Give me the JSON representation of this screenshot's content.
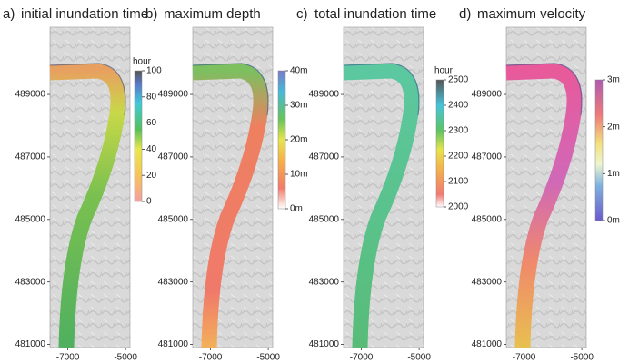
{
  "panels": [
    {
      "label": "a)",
      "title": "initial inundation time",
      "colorbar": {
        "unit": "hour",
        "ticks": [
          0,
          20,
          40,
          60,
          80,
          100
        ]
      },
      "xlim": [
        -7615,
        -4846
      ],
      "ylim": [
        480900,
        491150
      ],
      "xticks": [
        -7000,
        -5000
      ],
      "yticks": [
        481000,
        483000,
        485000,
        487000,
        489000
      ]
    },
    {
      "label": "b)",
      "title": "maximum depth",
      "colorbar": {
        "ticks": [
          {
            "value": 0,
            "label": "0m"
          },
          {
            "value": 10,
            "label": "10m"
          },
          {
            "value": 20,
            "label": "20m"
          },
          {
            "value": 30,
            "label": "30m"
          },
          {
            "value": 40,
            "label": "40m"
          }
        ]
      },
      "xlim": [
        -7615,
        -4846
      ],
      "ylim": [
        480900,
        491150
      ],
      "xticks": [
        -7000,
        -5000
      ],
      "yticks": [
        481000,
        483000,
        485000,
        487000,
        489000
      ]
    },
    {
      "label": "c)",
      "title": "total inundation time",
      "colorbar": {
        "unit": "hour",
        "ticks": [
          2000,
          2100,
          2200,
          2300,
          2400,
          2500
        ]
      },
      "xlim": [
        -7615,
        -4846
      ],
      "ylim": [
        480900,
        491150
      ],
      "xticks": [
        -7000,
        -5000
      ],
      "yticks": [
        481000,
        483000,
        485000,
        487000,
        489000
      ]
    },
    {
      "label": "d)",
      "title": "maximum velocity",
      "colorbar": {
        "ticks": [
          {
            "value": 0,
            "label": "0m"
          },
          {
            "value": 1,
            "label": "1m"
          },
          {
            "value": 2,
            "label": "2m"
          },
          {
            "value": 3,
            "label": "3m"
          }
        ]
      },
      "xlim": [
        -7615,
        -4846
      ],
      "ylim": [
        480900,
        491150
      ],
      "xticks": [
        -7000,
        -5000
      ],
      "yticks": [
        481000,
        483000,
        485000,
        487000,
        489000
      ]
    }
  ]
}
